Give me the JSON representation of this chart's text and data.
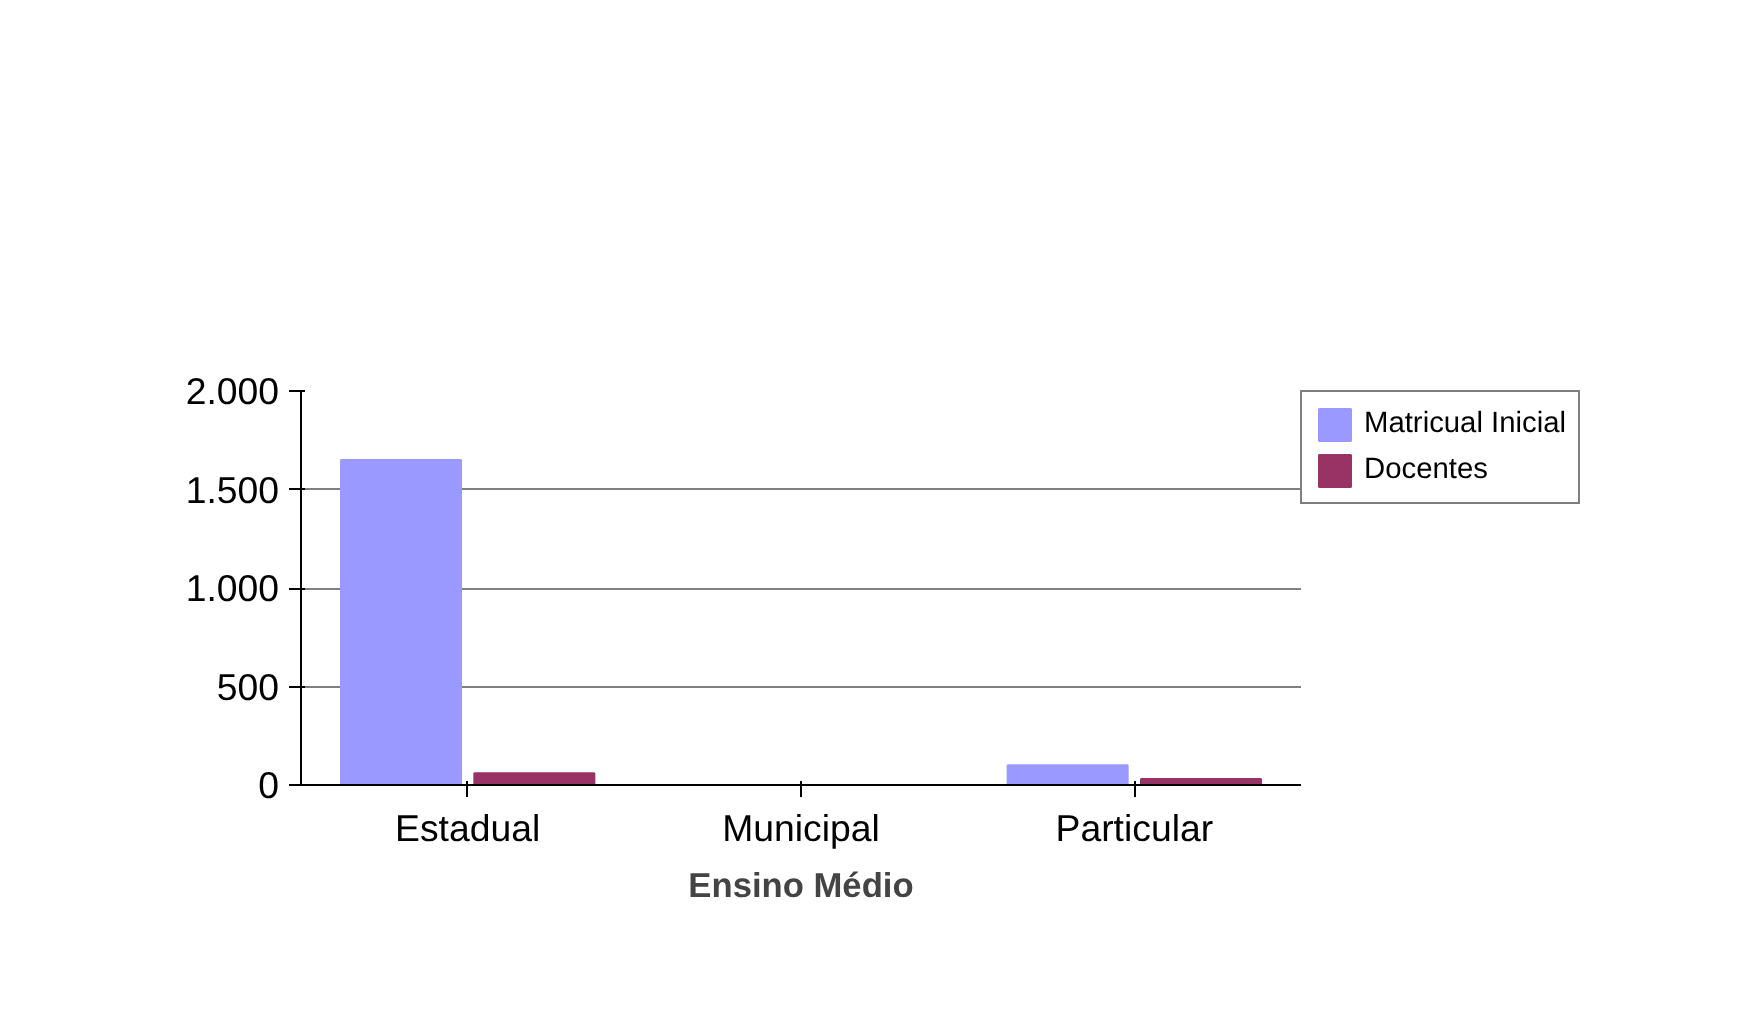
{
  "chart_data": {
    "type": "bar",
    "xlabel": "Ensino Médio",
    "categories": [
      "Estadual",
      "Municipal",
      "Particular"
    ],
    "series": [
      {
        "name": "Matricual Inicial",
        "color": "#9999ff",
        "values": [
          1650,
          0,
          100
        ]
      },
      {
        "name": "Docentes",
        "color": "#993366",
        "values": [
          60,
          0,
          30
        ]
      }
    ],
    "ylim": [
      0,
      2000
    ],
    "yticks": [
      {
        "value": 0,
        "label": "0"
      },
      {
        "value": 500,
        "label": "500"
      },
      {
        "value": 1000,
        "label": "1.000"
      },
      {
        "value": 1500,
        "label": "1.500"
      },
      {
        "value": 2000,
        "label": "2.000"
      }
    ],
    "grid": "y",
    "legend": "right"
  }
}
